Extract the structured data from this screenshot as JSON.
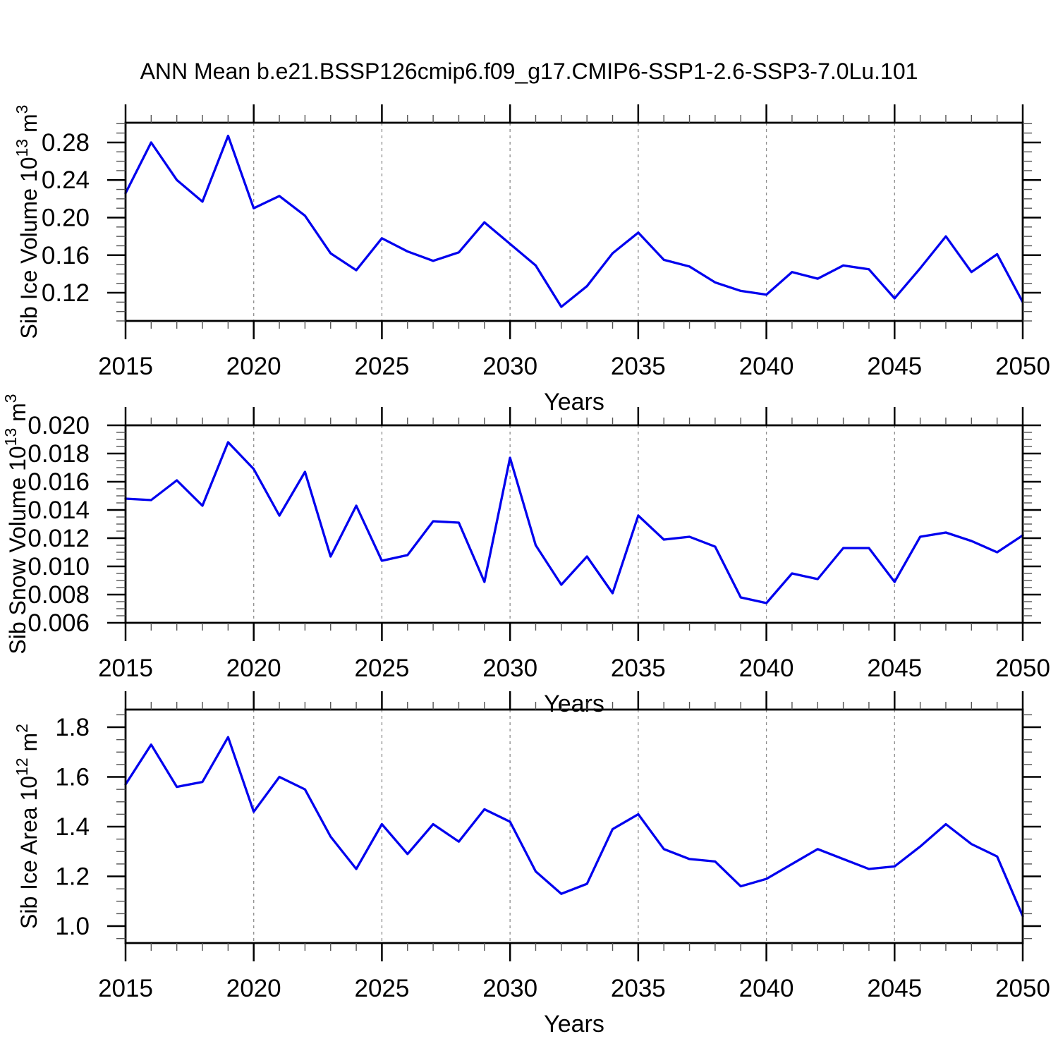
{
  "title": "ANN Mean b.e21.BSSP126cmip6.f09_g17.CMIP6-SSP1-2.6-SSP3-7.0Lu.101",
  "line_color": "#0000ee",
  "x_axis": {
    "label": "Years",
    "start": 2015,
    "end": 2050,
    "years": [
      2015,
      2016,
      2017,
      2018,
      2019,
      2020,
      2021,
      2022,
      2023,
      2024,
      2025,
      2026,
      2027,
      2028,
      2029,
      2030,
      2031,
      2032,
      2033,
      2034,
      2035,
      2036,
      2037,
      2038,
      2039,
      2040,
      2041,
      2042,
      2043,
      2044,
      2045,
      2046,
      2047,
      2048,
      2049,
      2050
    ],
    "major_ticks": [
      2015,
      2020,
      2025,
      2030,
      2035,
      2040,
      2045,
      2050
    ],
    "major_tick_labels": [
      "2015",
      "2020",
      "2025",
      "2030",
      "2035",
      "2040",
      "2045",
      "2050"
    ],
    "minor_tick_step": 1,
    "gridline_years": [
      2020,
      2025,
      2030,
      2035,
      2040,
      2045
    ]
  },
  "chart_data": [
    {
      "id": "sib-ice-volume",
      "type": "line",
      "xlabel": "Years",
      "ylabel_segments": [
        {
          "t": "Sib Ice Volume 10"
        },
        {
          "sup": "13"
        },
        {
          "t": " m"
        },
        {
          "sup": "3"
        }
      ],
      "ylim": [
        0.09,
        0.301
      ],
      "ytick_values": [
        0.12,
        0.16,
        0.2,
        0.24,
        0.28
      ],
      "ytick_labels": [
        "0.12",
        "0.16",
        "0.20",
        "0.24",
        "0.28"
      ],
      "yminor_step": 0.01,
      "values": [
        0.226,
        0.28,
        0.24,
        0.217,
        0.287,
        0.21,
        0.223,
        0.202,
        0.162,
        0.144,
        0.178,
        0.164,
        0.154,
        0.163,
        0.195,
        0.172,
        0.149,
        0.105,
        0.127,
        0.162,
        0.184,
        0.155,
        0.148,
        0.131,
        0.122,
        0.118,
        0.142,
        0.135,
        0.149,
        0.145,
        0.114,
        0.146,
        0.18,
        0.142,
        0.161,
        0.11
      ]
    },
    {
      "id": "sib-snow-volume",
      "type": "line",
      "xlabel": "Years",
      "ylabel_segments": [
        {
          "t": "Sib Snow Volume 10"
        },
        {
          "sup": "13"
        },
        {
          "t": " m"
        },
        {
          "sup": "3"
        }
      ],
      "ylim": [
        0.006,
        0.02
      ],
      "ytick_values": [
        0.006,
        0.008,
        0.01,
        0.012,
        0.014,
        0.016,
        0.018,
        0.02
      ],
      "ytick_labels": [
        "0.006",
        "0.008",
        "0.010",
        "0.012",
        "0.014",
        "0.016",
        "0.018",
        "0.020"
      ],
      "yminor_step": 0.0005,
      "values": [
        0.0148,
        0.0147,
        0.0161,
        0.0143,
        0.0188,
        0.0169,
        0.0136,
        0.0167,
        0.0107,
        0.0143,
        0.0104,
        0.0108,
        0.0132,
        0.0131,
        0.0089,
        0.0177,
        0.0115,
        0.0087,
        0.0107,
        0.0081,
        0.0136,
        0.0119,
        0.0121,
        0.0114,
        0.0078,
        0.0074,
        0.0095,
        0.0091,
        0.0113,
        0.0113,
        0.0089,
        0.0121,
        0.0124,
        0.0118,
        0.011,
        0.0122
      ]
    },
    {
      "id": "sib-ice-area",
      "type": "line",
      "xlabel": "Years",
      "ylabel_segments": [
        {
          "t": "Sib Ice Area 10"
        },
        {
          "sup": "12"
        },
        {
          "t": " m"
        },
        {
          "sup": "2"
        }
      ],
      "ylim": [
        0.932,
        1.871
      ],
      "ytick_values": [
        1.0,
        1.2,
        1.4,
        1.6,
        1.8
      ],
      "ytick_labels": [
        "1.0",
        "1.2",
        "1.4",
        "1.6",
        "1.8"
      ],
      "yminor_step": 0.05,
      "values": [
        1.57,
        1.73,
        1.56,
        1.58,
        1.76,
        1.46,
        1.6,
        1.55,
        1.36,
        1.23,
        1.41,
        1.29,
        1.41,
        1.34,
        1.47,
        1.42,
        1.22,
        1.13,
        1.17,
        1.39,
        1.45,
        1.31,
        1.27,
        1.26,
        1.16,
        1.19,
        1.25,
        1.31,
        1.27,
        1.23,
        1.24,
        1.32,
        1.41,
        1.33,
        1.28,
        1.04
      ]
    }
  ]
}
